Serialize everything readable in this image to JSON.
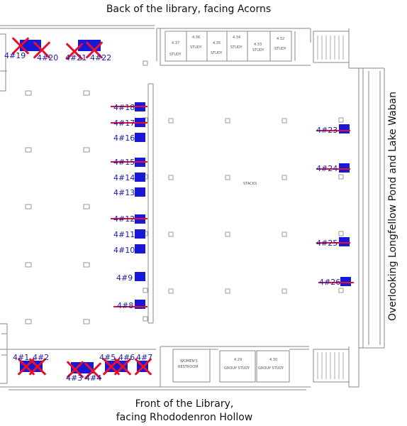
{
  "captions": {
    "top": "Back of the library, facing Acorns",
    "bottom_line1": "Front of the Library,",
    "bottom_line2": "facing Rhododenron Hollow",
    "side": "Overlooking Longfellow Pond and Lake Waban"
  },
  "rooms": {
    "top_study": [
      {
        "number": "4.37",
        "label": "STUDY"
      },
      {
        "number": "4.36",
        "label": "STUDY"
      },
      {
        "number": "4.35",
        "label": "STUDY"
      },
      {
        "number": "4.34",
        "label": "STUDY"
      },
      {
        "number": "4.33",
        "label": "STUDY"
      },
      {
        "number": "4.32",
        "label": "STUDY"
      }
    ],
    "stacks": "STACKS",
    "restroom_line1": "WOMEN'S",
    "restroom_line2": "RESTROOM",
    "group_study": [
      {
        "number": "4.29",
        "label": "GROUP STUDY"
      },
      {
        "number": "4.30",
        "label": "GROUP STUDY"
      }
    ]
  },
  "seats": [
    {
      "id": "4#1",
      "status": "unavailable"
    },
    {
      "id": "4#2",
      "status": "unavailable"
    },
    {
      "id": "4#3",
      "status": "unavailable"
    },
    {
      "id": "4#4",
      "status": "unavailable"
    },
    {
      "id": "4#5",
      "status": "unavailable"
    },
    {
      "id": "4#6",
      "status": "unavailable"
    },
    {
      "id": "4#7",
      "status": "unavailable"
    },
    {
      "id": "4#8",
      "status": "unavailable"
    },
    {
      "id": "4#9",
      "status": "available"
    },
    {
      "id": "4#10",
      "status": "available"
    },
    {
      "id": "4#11",
      "status": "available"
    },
    {
      "id": "4#12",
      "status": "unavailable"
    },
    {
      "id": "4#13",
      "status": "available"
    },
    {
      "id": "4#14",
      "status": "available"
    },
    {
      "id": "4#15",
      "status": "unavailable"
    },
    {
      "id": "4#16",
      "status": "available"
    },
    {
      "id": "4#17",
      "status": "unavailable"
    },
    {
      "id": "4#18",
      "status": "unavailable"
    },
    {
      "id": "4#19",
      "status": "unavailable"
    },
    {
      "id": "4#20",
      "status": "unavailable"
    },
    {
      "id": "4#21",
      "status": "unavailable"
    },
    {
      "id": "4#22",
      "status": "unavailable"
    },
    {
      "id": "4#23",
      "status": "unavailable"
    },
    {
      "id": "4#24",
      "status": "unavailable"
    },
    {
      "id": "4#25",
      "status": "unavailable"
    },
    {
      "id": "4#26",
      "status": "unavailable"
    }
  ],
  "colors": {
    "seat": "#1818d8",
    "seat_label": "#1a1aa8",
    "unavailable_mark": "#e8102a",
    "wall": "#888888"
  }
}
